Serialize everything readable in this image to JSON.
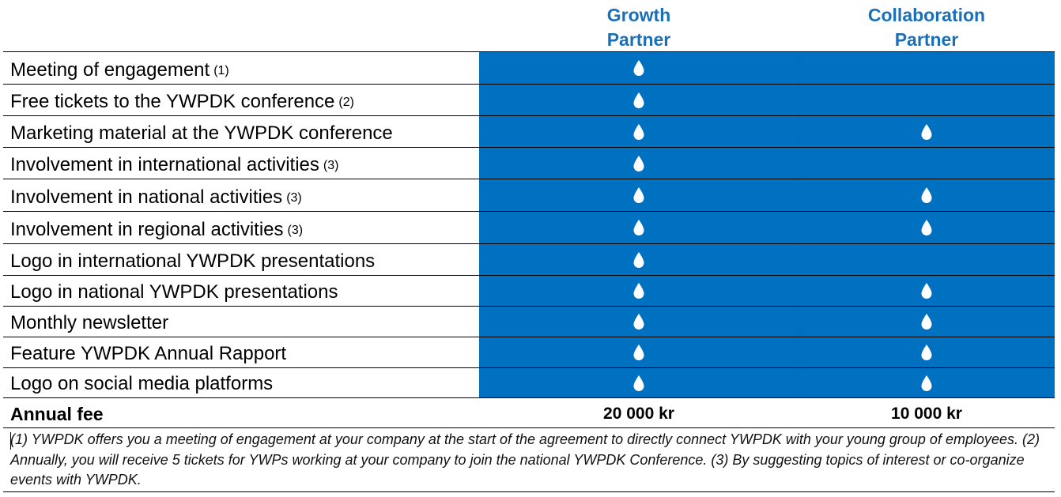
{
  "header": {
    "growth_line1": "Growth",
    "growth_line2": "Partner",
    "collab_line1": "Collaboration",
    "collab_line2": "Partner"
  },
  "rows": [
    {
      "label": "Meeting of engagement",
      "note": "(1)",
      "growth": true,
      "collab": false
    },
    {
      "label": "Free tickets to the YWPDK conference",
      "note": "(2)",
      "growth": true,
      "collab": false
    },
    {
      "label": "Marketing material at the YWPDK conference",
      "note": "",
      "growth": true,
      "collab": true
    },
    {
      "label": "Involvement in international activities",
      "note": "(3)",
      "growth": true,
      "collab": false
    },
    {
      "label": "Involvement in national activities",
      "note": "(3)",
      "growth": true,
      "collab": true
    },
    {
      "label": "Involvement in regional activities",
      "note": "(3)",
      "growth": true,
      "collab": true
    },
    {
      "label": "Logo in international YWPDK presentations",
      "note": "",
      "growth": true,
      "collab": false
    },
    {
      "label": "Logo in national YWPDK presentations",
      "note": "",
      "growth": true,
      "collab": true
    },
    {
      "label": "Monthly newsletter",
      "note": "",
      "growth": true,
      "collab": true
    },
    {
      "label": "Feature YWPDK Annual Rapport",
      "note": "",
      "growth": true,
      "collab": true
    },
    {
      "label": "Logo on social media platforms",
      "note": "",
      "growth": true,
      "collab": true
    }
  ],
  "fee": {
    "label": "Annual fee",
    "growth": "20 000 kr",
    "collab": "10 000 kr"
  },
  "footnote": "(1) YWPDK offers you a meeting of engagement at your company at the start of the agreement to directly connect YWPDK with your young group of employees.  (2) Annually, you will receive 5 tickets for YWPs working at your company to join the national YWPDK Conference. (3) By suggesting topics of interest or co-organize events with YWPDK.",
  "icons": {
    "included": "water-drop-icon"
  },
  "colors": {
    "cell_fill": "#0070c0",
    "header_text": "#1b6fb8",
    "drop": "#ffffff"
  }
}
